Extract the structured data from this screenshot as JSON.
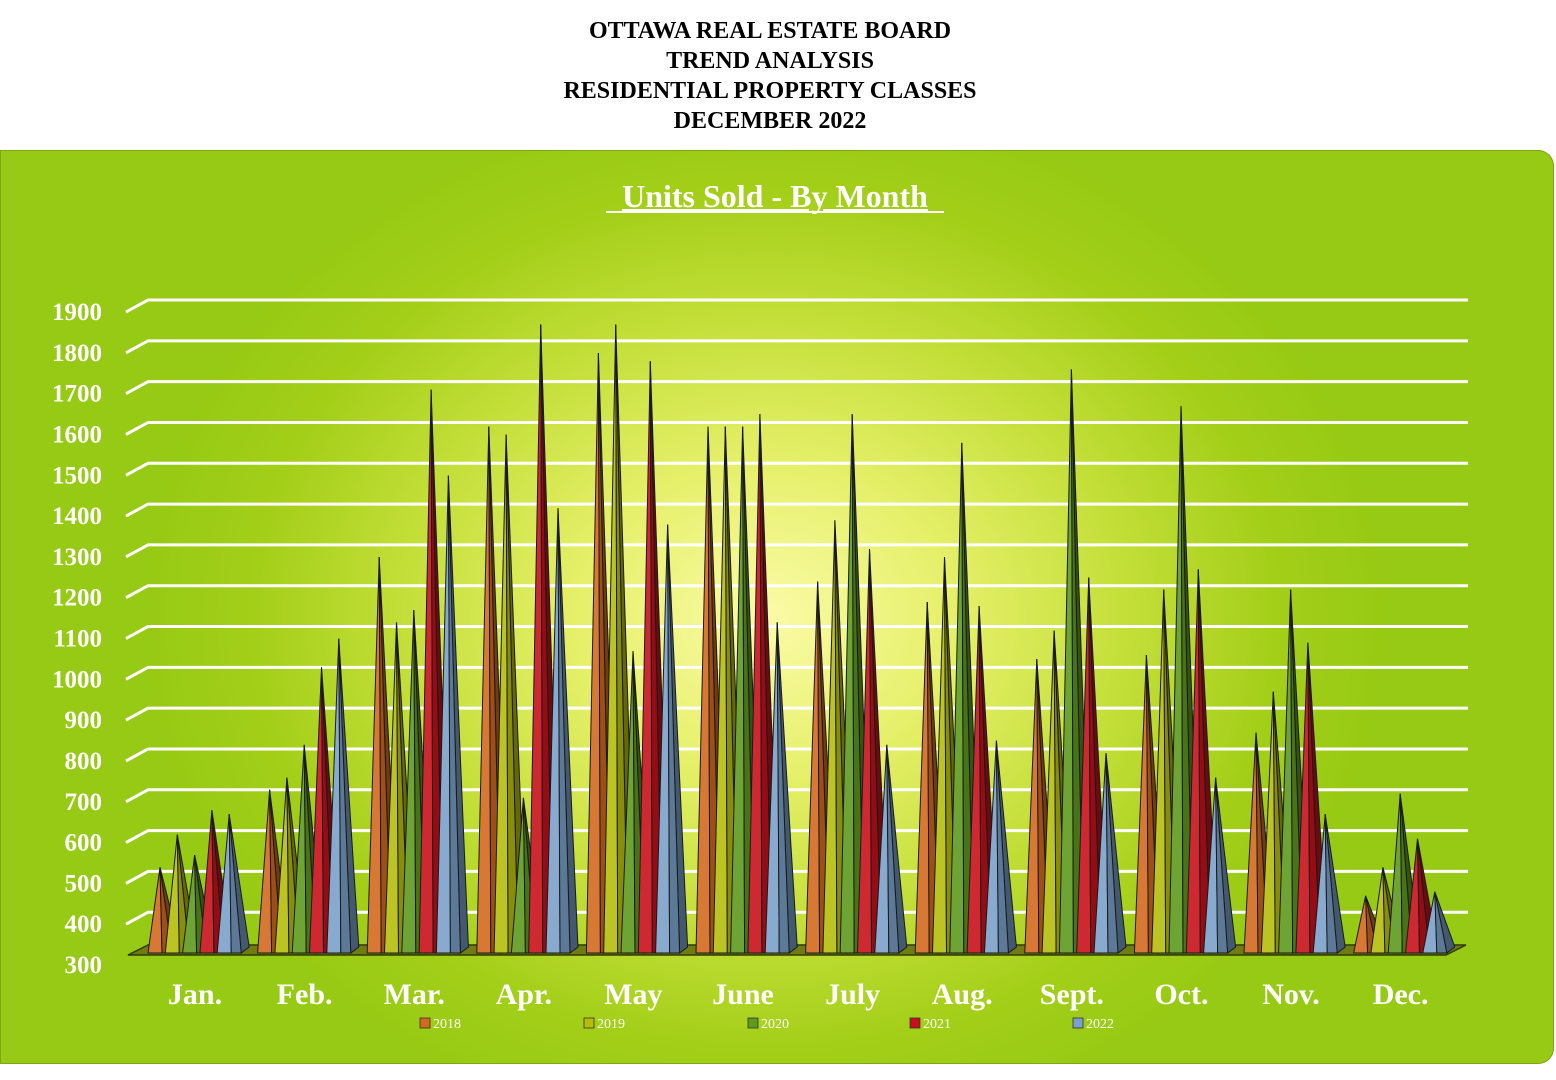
{
  "header": {
    "line1": "OTTAWA REAL ESTATE BOARD",
    "line2": "TREND ANALYSIS",
    "line3": "RESIDENTIAL PROPERTY CLASSES",
    "line4": "DECEMBER 2022"
  },
  "chart_data": {
    "type": "bar",
    "title": "Units Sold - By Month",
    "xlabel": "",
    "ylabel": "",
    "ylim": [
      300,
      1900
    ],
    "yticks": [
      300,
      400,
      500,
      600,
      700,
      800,
      900,
      1000,
      1100,
      1200,
      1300,
      1400,
      1500,
      1600,
      1700,
      1800,
      1900
    ],
    "grid": true,
    "legend_position": "bottom",
    "categories": [
      "Jan.",
      "Feb.",
      "Mar.",
      "Apr.",
      "May",
      "June",
      "July",
      "Aug.",
      "Sept.",
      "Oct.",
      "Nov.",
      "Dec."
    ],
    "series": [
      {
        "name": "2018",
        "color": "#d2691e",
        "values": [
          510,
          700,
          1270,
          1590,
          1770,
          1590,
          1210,
          1160,
          1020,
          1030,
          840,
          440
        ]
      },
      {
        "name": "2019",
        "color": "#b5bd0c",
        "values": [
          590,
          730,
          1110,
          1570,
          1840,
          1590,
          1360,
          1270,
          1090,
          1190,
          940,
          510
        ]
      },
      {
        "name": "2020",
        "color": "#5e9a1c",
        "values": [
          540,
          810,
          1140,
          680,
          1040,
          1590,
          1620,
          1550,
          1730,
          1640,
          1190,
          690
        ]
      },
      {
        "name": "2021",
        "color": "#c8101a",
        "values": [
          650,
          1000,
          1680,
          1840,
          1750,
          1620,
          1290,
          1150,
          1220,
          1240,
          1060,
          580
        ]
      },
      {
        "name": "2022",
        "color": "#7aa1c9",
        "values": [
          640,
          1070,
          1470,
          1390,
          1350,
          1110,
          810,
          820,
          790,
          730,
          640,
          450
        ]
      }
    ]
  }
}
